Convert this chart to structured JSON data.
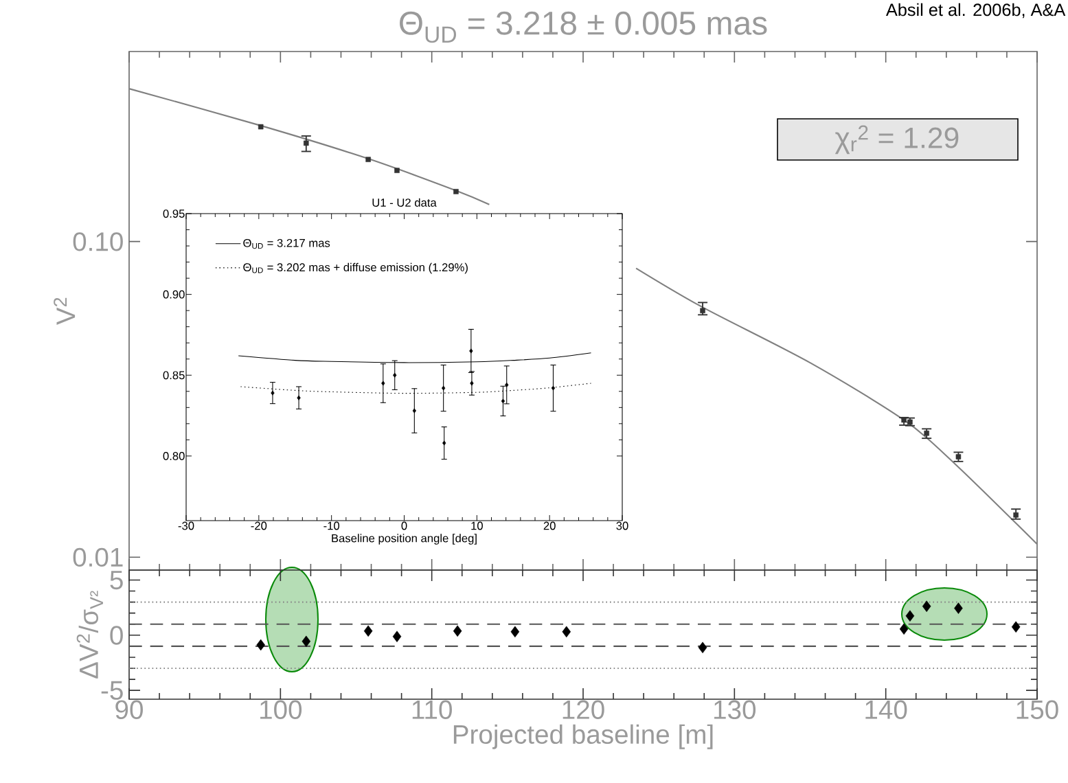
{
  "chart_data": [
    {
      "type": "line",
      "title": "Θ$_{UD}$ = 3.218 ± 0.005 mas",
      "ylabel": "V$^{2}$",
      "log": "y",
      "xlim": [
        90,
        150
      ],
      "xticks": [
        90,
        100,
        110,
        120,
        130,
        140,
        150
      ],
      "ylim": [
        0.0091,
        0.4
      ],
      "yticks": [
        {
          "value": 0.01,
          "label": "0.01"
        },
        {
          "value": 0.1,
          "label": "0.10"
        }
      ],
      "tick_labels": "y",
      "annotations": [
        "χ$_{r}$$^{2}$ =   1.29",
        "Absil et al. 2006b, A&A"
      ],
      "series": [
        {
          "color": "#808080",
          "line_style": "solid",
          "marker": "none",
          "x": [
            90,
            98.7,
            105.8,
            111.6,
            113.8,
            118.0,
            123.5,
            127.9,
            135.0,
            141.2,
            144.6,
            150
          ],
          "values": [
            0.305,
            0.233,
            0.183,
            0.145,
            0.131,
            null,
            0.0823,
            0.0619,
            0.0413,
            0.0272,
            0.0197,
            0.011
          ]
        },
        {
          "type": "scatter",
          "color": "#333333",
          "marker": "square",
          "x": [
            98.7,
            101.7,
            105.8,
            107.7,
            111.6,
            115.5,
            118.9,
            127.9,
            141.2,
            141.6,
            142.7,
            144.8,
            148.6
          ],
          "values": [
            0.231,
            0.205,
            0.182,
            0.168,
            0.144,
            null,
            null,
            0.0604,
            0.0272,
            0.0268,
            0.0247,
            0.0208,
            0.0136
          ],
          "errors": [
            null,
            [
              0.193,
              0.216
            ],
            null,
            null,
            null,
            null,
            null,
            [
              0.0586,
              0.0641
            ],
            [
              0.0262,
              0.0277
            ],
            [
              0.0261,
              0.0276
            ],
            [
              0.0238,
              0.0255
            ],
            [
              0.0201,
              0.0215
            ],
            [
              0.0132,
              0.0142
            ]
          ]
        }
      ]
    },
    {
      "type": "scatter",
      "xlabel": "Projected baseline [m]",
      "ylabel": "ΔV$^{2}$/σ$_{V²}$",
      "xlim": [
        90,
        150
      ],
      "xticks": [
        90,
        100,
        110,
        120,
        130,
        140,
        150
      ],
      "ylim": [
        -5.8,
        5.9
      ],
      "yticks": [
        -5,
        0,
        5
      ],
      "ref_lines": [
        {
          "axis": "y",
          "value": 1,
          "line_style": "dashed",
          "color": "#555555"
        },
        {
          "axis": "y",
          "value": -1,
          "line_style": "dashed",
          "color": "#555555"
        },
        {
          "axis": "y",
          "value": 3,
          "line_style": "dotted",
          "color": "#888888"
        },
        {
          "axis": "y",
          "value": -3,
          "line_style": "dotted",
          "color": "#888888"
        }
      ],
      "series": [
        {
          "color": "#000000",
          "marker": "diamond",
          "x": [
            98.7,
            101.7,
            105.8,
            107.7,
            111.7,
            115.5,
            118.9,
            127.9,
            141.2,
            141.6,
            142.7,
            144.8,
            148.6
          ],
          "values": [
            -0.88,
            -0.56,
            0.38,
            -0.12,
            0.38,
            0.31,
            0.31,
            -1.12,
            0.56,
            1.75,
            2.62,
            2.44,
            0.75
          ]
        }
      ]
    },
    {
      "type": "scatter",
      "title": "U1 - U2 data",
      "xlabel": "Baseline position angle [deg]",
      "xlim": [
        -30,
        30
      ],
      "xticks": [
        -30,
        -20,
        -10,
        0,
        10,
        20,
        30
      ],
      "ylim": [
        0.76,
        0.95
      ],
      "yticks": [
        {
          "value": 0.8,
          "label": "0.80"
        },
        0.85,
        {
          "value": 0.9,
          "label": "0.90"
        },
        0.95
      ],
      "legend": "top left",
      "series": [
        {
          "type": "line",
          "name": "Θ$_{UD}$ = 3.217 mas",
          "color": "#000000",
          "line_style": "solid",
          "marker": "none",
          "x": [
            -22.8,
            -15,
            -10,
            0,
            10,
            15,
            20,
            25.7
          ],
          "values": [
            0.862,
            0.8592,
            0.8585,
            0.8578,
            0.8583,
            0.8592,
            0.8606,
            0.8638
          ]
        },
        {
          "type": "line",
          "name": "Θ$_{UD}$ = 3.202 mas + diffuse emission (1.29%)",
          "color": "#000000",
          "line_style": "dotted",
          "marker": "none",
          "x": [
            -22.5,
            -15,
            -10,
            0,
            10,
            15,
            20,
            25.7
          ],
          "values": [
            0.8429,
            0.8406,
            0.8397,
            0.8388,
            0.8394,
            0.8406,
            0.8422,
            0.845
          ]
        },
        {
          "color": "#000000",
          "marker": "diamond",
          "x": [
            -18.1,
            -14.5,
            -2.9,
            -1.3,
            1.4,
            5.4,
            5.5,
            9.2,
            9.3,
            13.6,
            14.1,
            20.5
          ],
          "values": [
            0.839,
            0.836,
            0.845,
            0.85,
            0.828,
            0.842,
            0.808,
            0.865,
            0.845,
            0.834,
            0.844,
            0.842
          ],
          "errors": [
            0.0066,
            0.0069,
            0.012,
            0.009,
            0.0137,
            0.0143,
            0.01,
            0.0134,
            0.0073,
            0.0092,
            0.0117,
            0.0143
          ]
        }
      ]
    }
  ]
}
